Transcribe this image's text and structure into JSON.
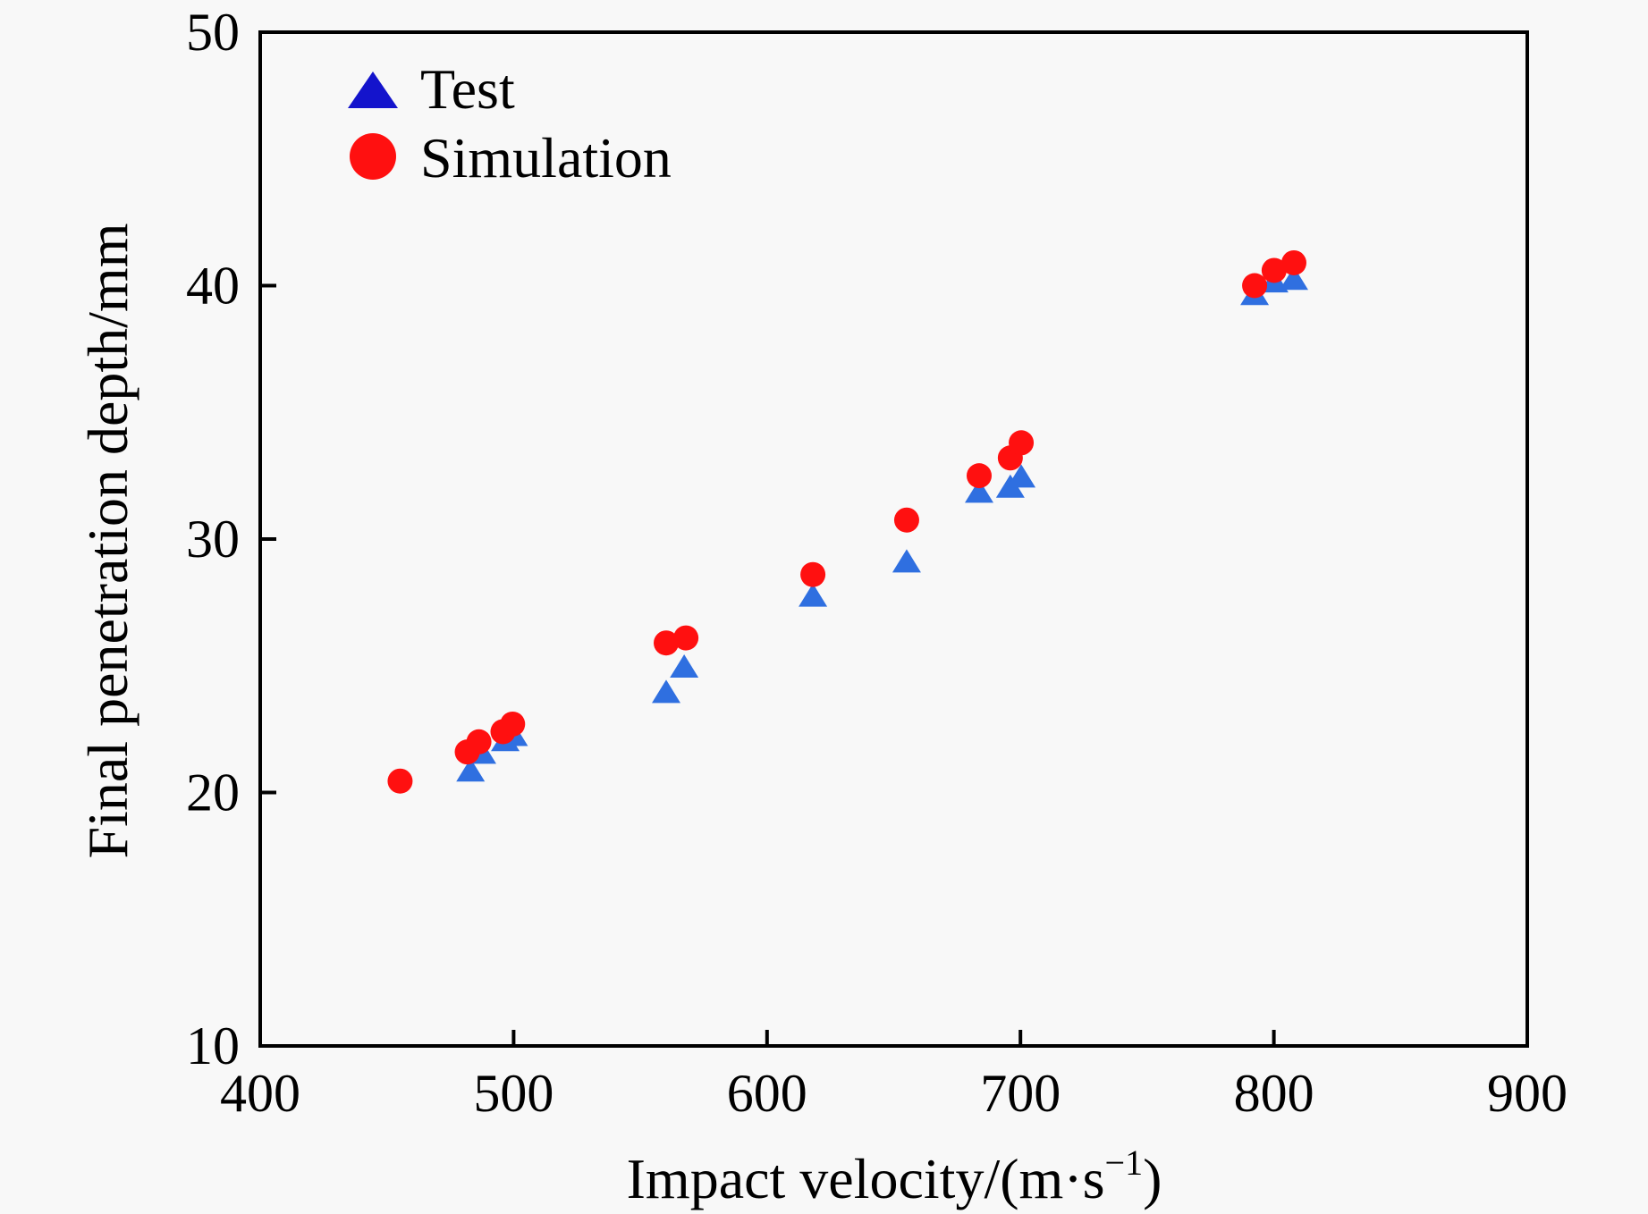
{
  "chart_data": {
    "type": "scatter",
    "title": "",
    "xlabel": "Impact velocity/(m·s",
    "xlabel_sup": "−1",
    "xlabel_suffix": ")",
    "ylabel": "Final penetration depth/mm",
    "xlim": [
      400,
      900
    ],
    "ylim": [
      10,
      50
    ],
    "xticks": [
      400,
      500,
      600,
      700,
      800,
      900
    ],
    "yticks": [
      10,
      20,
      30,
      40,
      50
    ],
    "xtick_labels": [
      "400",
      "500",
      "600",
      "700",
      "800",
      "900"
    ],
    "ytick_labels": [
      "10",
      "20",
      "30",
      "40",
      "50"
    ],
    "grid": false,
    "tick_direction": "in",
    "legend": {
      "placement": "top-left",
      "entries": [
        "Test",
        "Simulation"
      ]
    },
    "series": [
      {
        "name": "Test",
        "marker": "triangle",
        "color": "#2f6fe0",
        "legend_color": "#1414cc",
        "points": [
          [
            483,
            20.8
          ],
          [
            487.5,
            21.5
          ],
          [
            496.7,
            22.0
          ],
          [
            500,
            22.2
          ],
          [
            560.2,
            23.9
          ],
          [
            567.3,
            24.9
          ],
          [
            618.1,
            27.7
          ],
          [
            655.1,
            29.05
          ],
          [
            683.7,
            31.8
          ],
          [
            696.0,
            32.0
          ],
          [
            700.3,
            32.4
          ],
          [
            792.4,
            39.6
          ],
          [
            800.1,
            40.1
          ],
          [
            807.9,
            40.2
          ]
        ]
      },
      {
        "name": "Simulation",
        "marker": "circle",
        "color": "#ff1010",
        "legend_color": "#ff1010",
        "points": [
          [
            455.2,
            20.45
          ],
          [
            481.7,
            21.6
          ],
          [
            486.3,
            22.0
          ],
          [
            495.8,
            22.4
          ],
          [
            499.6,
            22.7
          ],
          [
            560.2,
            25.9
          ],
          [
            568.0,
            26.1
          ],
          [
            618.1,
            28.6
          ],
          [
            655.1,
            30.75
          ],
          [
            683.7,
            32.5
          ],
          [
            696.0,
            33.2
          ],
          [
            700.3,
            33.8
          ],
          [
            792.4,
            40.0
          ],
          [
            800.1,
            40.6
          ],
          [
            807.9,
            40.9
          ]
        ]
      }
    ]
  }
}
